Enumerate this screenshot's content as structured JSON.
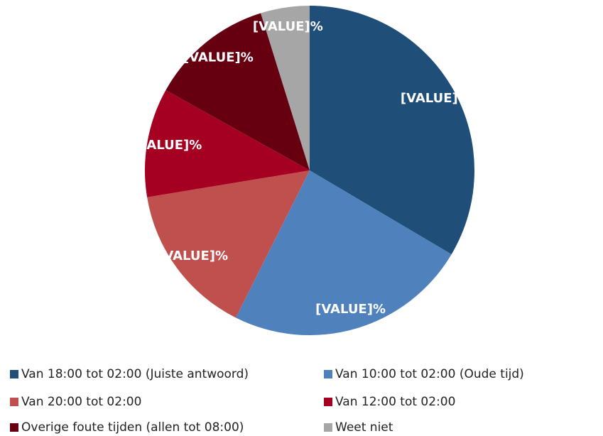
{
  "chart_data": {
    "type": "pie",
    "categories": [
      "Van 18:00 tot 02:00 (Juiste antwoord)",
      "Van 10:00 tot 02:00 (Oude tijd)",
      "Van 20:00 tot 02:00",
      "Van 12:00 tot 02:00",
      "Overige foute tijden (allen tot 08:00)",
      "Weet niet"
    ],
    "values": [
      33.5,
      23.9,
      15,
      10.7,
      12.1,
      4.8
    ],
    "value_labels": [
      "[VALUE]%",
      "[VALUE]%",
      "[VALUE]%",
      "[VALUE]%",
      "[VALUE]%",
      "[VALUE]%"
    ],
    "colors": [
      "#1f4e79",
      "#4f81bd",
      "#c0504d",
      "#a50021",
      "#660011",
      "#a6a6a6"
    ]
  }
}
